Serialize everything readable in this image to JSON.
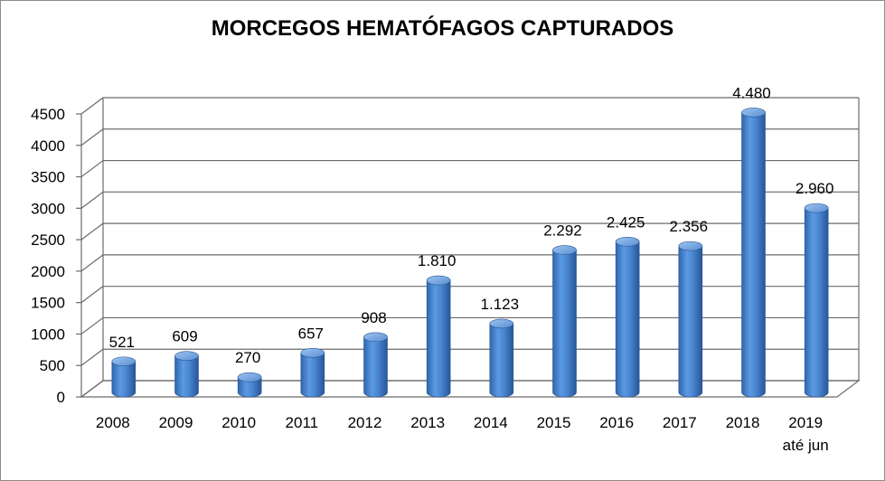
{
  "chart_data": {
    "type": "bar",
    "title": "MORCEGOS HEMATÓFAGOS CAPTURADOS",
    "xlabel": "",
    "ylabel": "",
    "ylim": [
      0,
      4500
    ],
    "y_ticks": [
      "0",
      "500",
      "1000",
      "1500",
      "2000",
      "2500",
      "3000",
      "3500",
      "4000",
      "4500"
    ],
    "y_tick_values": [
      0,
      500,
      1000,
      1500,
      2000,
      2500,
      3000,
      3500,
      4000,
      4500
    ],
    "categories": [
      "2008",
      "2009",
      "2010",
      "2011",
      "2012",
      "2013",
      "2014",
      "2015",
      "2016",
      "2017",
      "2018",
      "2019"
    ],
    "category_sublabels": [
      "",
      "",
      "",
      "",
      "",
      "",
      "",
      "",
      "",
      "",
      "",
      "até jun"
    ],
    "values": [
      521,
      609,
      270,
      657,
      908,
      1810,
      1123,
      2292,
      2425,
      2356,
      4480,
      2960
    ],
    "data_labels": [
      "521",
      "609",
      "270",
      "657",
      "908",
      "1.810",
      "1.123",
      "2.292",
      "2.425",
      "2.356",
      "4.480",
      "2.960"
    ],
    "grid": true,
    "legend": "none",
    "style": "3d-cylinder",
    "bar_color": "#4f8fd8"
  }
}
